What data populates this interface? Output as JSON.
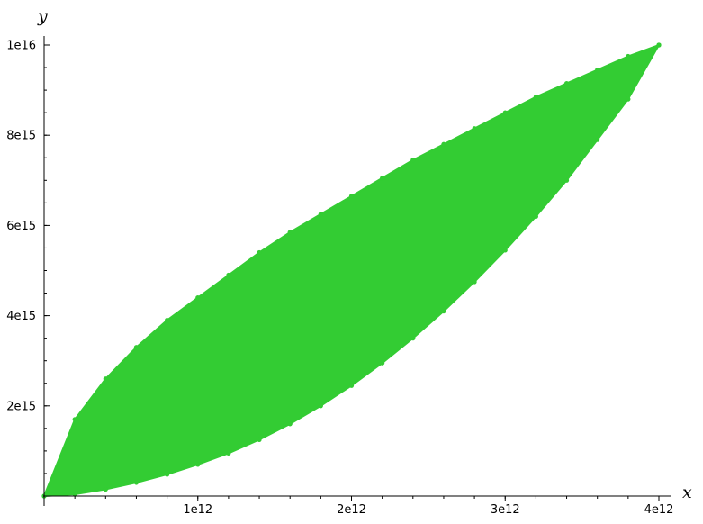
{
  "chart_data": {
    "type": "scatter",
    "title": "",
    "xlabel": "x",
    "ylabel": "y",
    "xlim": [
      0,
      4000000000000
    ],
    "ylim": [
      0,
      10000000000000000
    ],
    "x_ticks": [
      {
        "value": 1000000000000,
        "label": "1e12"
      },
      {
        "value": 2000000000000,
        "label": "2e12"
      },
      {
        "value": 3000000000000,
        "label": "3e12"
      },
      {
        "value": 4000000000000,
        "label": "4e12"
      }
    ],
    "y_ticks": [
      {
        "value": 2000000000000000,
        "label": "2e15"
      },
      {
        "value": 4000000000000000,
        "label": "4e15"
      },
      {
        "value": 6000000000000000,
        "label": "6e15"
      },
      {
        "value": 8000000000000000,
        "label": "8e15"
      },
      {
        "value": 10000000000000000,
        "label": "1e16"
      }
    ],
    "grid": false,
    "legend": "none",
    "color": "#33cc33",
    "series": [
      {
        "x": [
          0,
          200000000000,
          400000000000,
          600000000000,
          800000000000,
          1000000000000,
          1200000000000,
          1400000000000,
          1600000000000,
          1800000000000,
          2000000000000,
          2200000000000,
          2400000000000,
          2600000000000,
          2800000000000,
          3000000000000,
          3200000000000,
          3400000000000,
          3600000000000,
          3800000000000,
          4000000000000
        ],
        "y": [
          0,
          1700000000000000,
          2600000000000000,
          3300000000000000,
          3900000000000000,
          4400000000000000,
          4900000000000000,
          5400000000000000,
          5850000000000000,
          6250000000000000,
          6650000000000000,
          7050000000000000,
          7450000000000000,
          7800000000000000,
          8150000000000000,
          8500000000000000,
          8850000000000000,
          9150000000000000,
          9450000000000000,
          9750000000000000,
          10000000000000000
        ]
      },
      {
        "x": [
          0,
          200000000000,
          400000000000,
          600000000000,
          800000000000,
          1000000000000,
          1200000000000,
          1400000000000,
          1600000000000,
          1800000000000,
          2000000000000,
          2200000000000,
          2400000000000,
          2600000000000,
          2800000000000,
          3000000000000,
          3200000000000,
          3400000000000,
          3600000000000,
          3800000000000,
          4000000000000
        ],
        "y": [
          0,
          40000000000000,
          150000000000000,
          300000000000000,
          480000000000000,
          700000000000000,
          950000000000000,
          1250000000000000,
          1600000000000000,
          2000000000000000,
          2450000000000000,
          2950000000000000,
          3500000000000000,
          4100000000000000,
          4750000000000000,
          5450000000000000,
          6200000000000000,
          7000000000000000,
          7900000000000000,
          8800000000000000,
          10000000000000000
        ]
      }
    ]
  }
}
